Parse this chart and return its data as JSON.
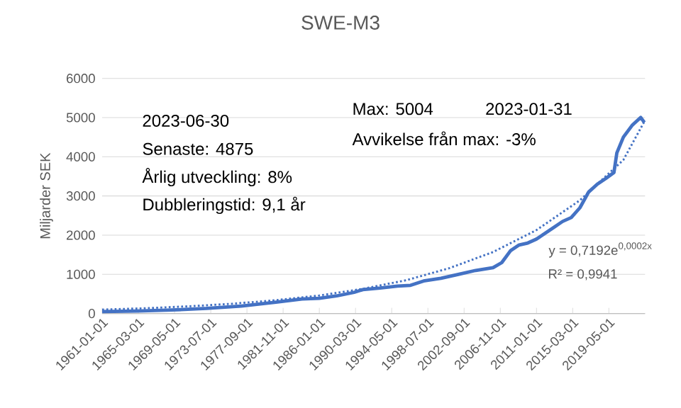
{
  "chart_data": {
    "type": "line",
    "title": "SWE-M3",
    "ylabel": "Miljarder SEK",
    "xlim": [
      "1961-01-01",
      "2023-06-30"
    ],
    "xticks": [
      "1961-01-01",
      "1965-03-01",
      "1969-05-01",
      "1973-07-01",
      "1977-09-01",
      "1981-11-01",
      "1986-01-01",
      "1990-03-01",
      "1994-05-01",
      "1998-07-01",
      "2002-09-01",
      "2006-11-01",
      "2011-01-01",
      "2015-03-01",
      "2019-05-01"
    ],
    "ylim": [
      0,
      6000
    ],
    "yticks": [
      0,
      1000,
      2000,
      3000,
      4000,
      5000,
      6000
    ],
    "grid": "y",
    "series": [
      {
        "color": "#4472c4",
        "line_style": "solid",
        "x": [
          "1961-01",
          "1965-01",
          "1969-01",
          "1973-01",
          "1977-01",
          "1981-01",
          "1984-01",
          "1986-01",
          "1988-01",
          "1990-01",
          "1991-01",
          "1993-01",
          "1995-01",
          "1996-07",
          "1998-01",
          "2000-01",
          "2002-01",
          "2004-01",
          "2006-01",
          "2007-01",
          "2008-01",
          "2009-01",
          "2010-01",
          "2011-01",
          "2012-01",
          "2013-01",
          "2014-01",
          "2015-01",
          "2016-01",
          "2017-01",
          "2018-01",
          "2019-01",
          "2019-12",
          "2020-04",
          "2021-01",
          "2022-01",
          "2023-01",
          "2023-06"
        ],
        "values": [
          50,
          65,
          90,
          130,
          190,
          290,
          370,
          390,
          450,
          540,
          610,
          650,
          700,
          720,
          830,
          900,
          1000,
          1100,
          1170,
          1300,
          1600,
          1750,
          1800,
          1900,
          2050,
          2200,
          2350,
          2450,
          2700,
          3100,
          3300,
          3450,
          3600,
          4100,
          4500,
          4800,
          5004,
          4875
        ]
      },
      {
        "color": "#4472c4",
        "line_style": "dotted",
        "x": [
          "1961-01",
          "1966-01",
          "1971-01",
          "1976-01",
          "1981-01",
          "1986-01",
          "1991-01",
          "1996-01",
          "2001-01",
          "2006-01",
          "2011-01",
          "2016-01",
          "2021-01",
          "2023-06"
        ],
        "values": [
          100,
          135,
          185,
          250,
          340,
          460,
          630,
          850,
          1160,
          1570,
          2130,
          2890,
          3920,
          4900
        ]
      }
    ],
    "annotations": [
      "2023-06-30",
      "Senaste: 4875",
      "Årlig utveckling: 8%",
      "Dubbleringstid: 9,1 år",
      "Max: 5004",
      "2023-01-31",
      "Avvikelse från max: -3%",
      "y = 0,7192e$^{0,0002x}$",
      "R² = 0,9941"
    ]
  }
}
